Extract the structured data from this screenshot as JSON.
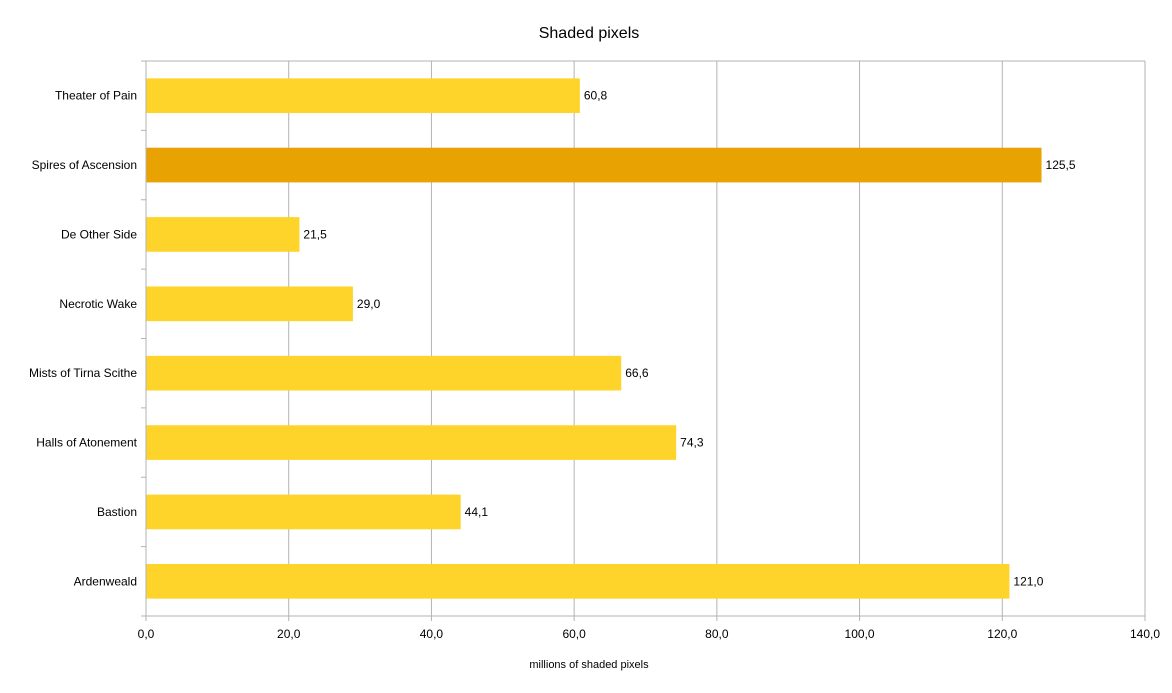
{
  "chart_data": {
    "type": "bar",
    "orientation": "horizontal",
    "title": "Shaded pixels",
    "xlabel": "millions of shaded pixels",
    "ylabel": "",
    "categories": [
      "Theater of Pain",
      "Spires of Ascension",
      "De Other Side",
      "Necrotic Wake",
      "Mists of Tirna Scithe",
      "Halls of Atonement",
      "Bastion",
      "Ardenweald"
    ],
    "values": [
      60.8,
      125.5,
      21.5,
      29.0,
      66.6,
      74.3,
      44.1,
      121.0
    ],
    "value_labels": [
      "60,8",
      "125,5",
      "21,5",
      "29,0",
      "66,6",
      "74,3",
      "44,1",
      "121,0"
    ],
    "highlight_category": "Spires of Ascension",
    "xlim": [
      0,
      140
    ],
    "x_ticks": [
      0,
      20,
      40,
      60,
      80,
      100,
      120,
      140
    ],
    "x_tick_labels": [
      "0,0",
      "20,0",
      "40,0",
      "60,0",
      "80,0",
      "100,0",
      "120,0",
      "140,0"
    ],
    "grid": true,
    "legend": "none",
    "colors": {
      "bar": "#ffd42a",
      "highlight": "#e8a202",
      "grid": "#b3b3b3",
      "axis": "#b3b3b3"
    }
  }
}
